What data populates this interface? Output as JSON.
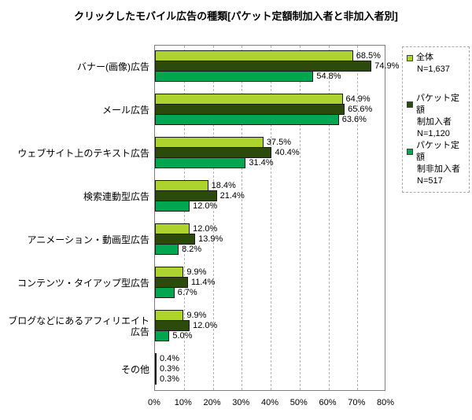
{
  "title": "クリックしたモバイル広告の種類[パケット定額制加入者と非加入者別]",
  "chart_data": {
    "type": "bar",
    "orientation": "horizontal",
    "title": "クリックしたモバイル広告の種類[パケット定額制加入者と非加入者別]",
    "categories": [
      "バナー(画像)広告",
      "メール広告",
      "ウェブサイト上のテキスト広告",
      "検索連動型広告",
      "アニメーション・動画型広告",
      "コンテンツ・タイアップ型広告",
      "ブログなどにあるアフィリエイト広告",
      "その他"
    ],
    "series": [
      {
        "name": "全体",
        "n_label": "N=1,637",
        "color": "#acd32e",
        "values": [
          68.5,
          64.9,
          37.5,
          18.4,
          12.0,
          9.9,
          9.9,
          0.4
        ]
      },
      {
        "name": "パケット定額制加入者",
        "n_label": "N=1,120",
        "color": "#2b4a0b",
        "values": [
          74.9,
          65.6,
          40.4,
          21.4,
          13.9,
          11.4,
          12.0,
          0.3
        ]
      },
      {
        "name": "パケット定額制非加入者",
        "n_label": "N=517",
        "color": "#00a650",
        "values": [
          54.8,
          63.6,
          31.4,
          12.0,
          8.2,
          6.7,
          5.0,
          0.3
        ]
      }
    ],
    "value_suffix": "%",
    "xlim": [
      0,
      80
    ],
    "x_tick_labels": [
      "0%",
      "10%",
      "20%",
      "30%",
      "40%",
      "50%",
      "60%",
      "70%",
      "80%"
    ],
    "grid": "dashed-vertical",
    "legend_position": "top-right",
    "legend": [
      {
        "color": "#acd32e",
        "lines": [
          "全体",
          "N=1,637"
        ],
        "gap_after": true
      },
      {
        "color": "#2b4a0b",
        "lines": [
          "パケット定額",
          "制加入者",
          "N=1,120"
        ],
        "gap_after": false
      },
      {
        "color": "#00a650",
        "lines": [
          "パケット定額",
          "制非加入者",
          "N=517"
        ],
        "gap_after": false
      }
    ]
  }
}
